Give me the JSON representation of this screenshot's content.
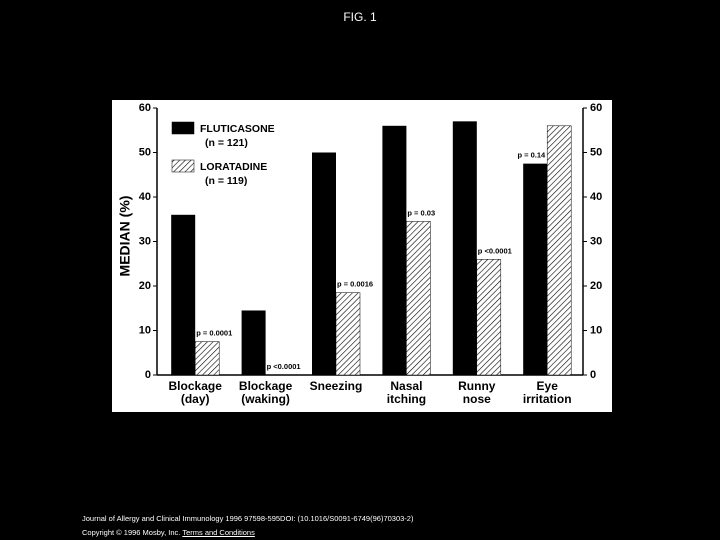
{
  "header": {
    "title": "FIG. 1"
  },
  "chart_data": {
    "type": "bar",
    "ylabel": "MEDIAN (%)",
    "categories": [
      [
        "Blockage",
        "(day)"
      ],
      [
        "Blockage",
        "(waking)"
      ],
      [
        "Sneezing"
      ],
      [
        "Nasal",
        "itching"
      ],
      [
        "Runny",
        "nose"
      ],
      [
        "Eye",
        "irritation"
      ]
    ],
    "series": [
      {
        "name": "FLUTICASONE",
        "n_label": "(n = 121)",
        "color": "#000000",
        "pattern": "solid",
        "values": [
          36,
          14.5,
          50,
          56,
          57,
          47.5
        ]
      },
      {
        "name": "LORATADINE",
        "n_label": "(n = 119)",
        "color": "#000000",
        "pattern": "hatch",
        "values": [
          7.5,
          0,
          18.5,
          34.5,
          26,
          56
        ]
      }
    ],
    "p_values": [
      "p = 0.0001",
      "p <0.0001",
      "p = 0.0016",
      "p = 0.03",
      "p <0.0001",
      "p = 0.14"
    ],
    "ylim": [
      0,
      60
    ],
    "yticks": [
      0,
      10,
      20,
      30,
      40,
      50,
      60
    ],
    "y2lim": [
      0,
      60
    ],
    "y2ticks": [
      0,
      10,
      20,
      30,
      40,
      50,
      60
    ]
  },
  "footer": {
    "citation": "Journal of Allergy and Clinical Immunology 1996 97598-595DOI: (10.1016/S0091-6749(96)70303-2)",
    "copyright": "Copyright © 1996 Mosby, Inc.",
    "link": "Terms and Conditions"
  }
}
